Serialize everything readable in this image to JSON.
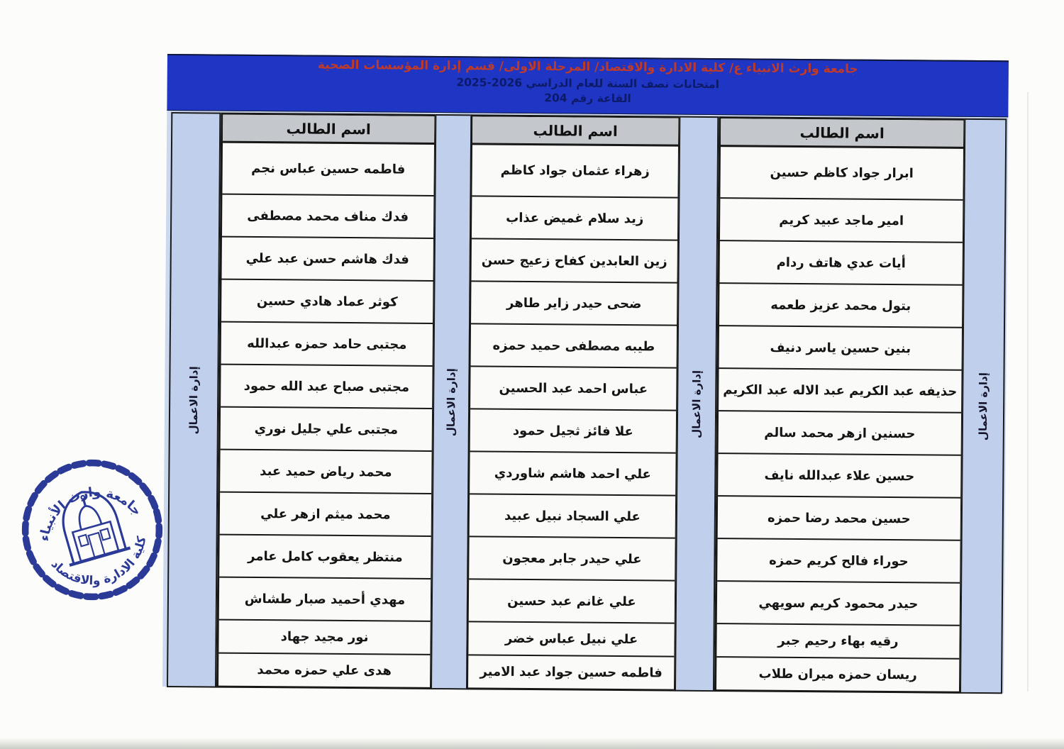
{
  "header": {
    "line1": "جامعة وارث الانبياء ع/ كلية الادارة والاقتصاد/ المرحلة الاولى/ قسم إدارة المؤسسات الصحية",
    "line2": "امتحانات نصف السنة للعام الدراسي 2026-2025",
    "line3": "القاعة رقم 204"
  },
  "column_header": "اسم الطالب",
  "vertical_label": "إدارة الاعمال",
  "groups": [
    {
      "position": "right",
      "students": [
        "ابرار جواد كاظم حسين",
        "امير ماجد عبيد كريم",
        "أيات عدي هاتف ردام",
        "بتول محمد عزيز طعمه",
        "بنين حسين ياسر دنيف",
        "حذيفه عبد الكريم عبد الاله عبد الكريم",
        "حسنين ازهر محمد سالم",
        "حسين علاء عبدالله نايف",
        "حسين محمد رضا حمزه",
        "حوراء فالح كريم حمزه",
        "حيدر محمود كريم سويهي",
        "رقيه بهاء رحيم جبر",
        "ريسان حمزه ميران طلاب"
      ]
    },
    {
      "position": "middle",
      "students": [
        "زهراء عثمان جواد كاظم",
        "زيد سلام غميض عذاب",
        "زين العابدين كفاح زعيج حسن",
        "ضحى حيدر زاير طاهر",
        "طيبه مصطفى حميد حمزه",
        "عباس احمد عبد الحسين",
        "علا فائز ثجيل حمود",
        "علي احمد هاشم شاوردي",
        "علي السجاد نبيل عبيد",
        "علي حيدر جابر معجون",
        "علي غانم عبد حسين",
        "علي نبيل عباس خضر",
        "فاطمه حسين جواد عبد الامير"
      ]
    },
    {
      "position": "left",
      "students": [
        "فاطمه حسين عباس نجم",
        "فدك مناف محمد مصطفى",
        "فدك هاشم حسن عبد علي",
        "كوثر عماد هادي حسين",
        "مجتبى حامد حمزه عبدالله",
        "مجتبى صباح عبد الله حمود",
        "مجتبى علي جليل نوري",
        "محمد رياض حميد عبد",
        "محمد ميثم ازهر علي",
        "منتظر يعقوب كامل عامر",
        "مهدي أحميد صبار طشاش",
        "نور مجيد جهاد",
        "هدى علي حمزه محمد"
      ]
    }
  ],
  "stamp": {
    "top_text": "جامعة وارث الأنبياء",
    "bottom_text": "كلية الادارة والاقتصاد"
  },
  "colors": {
    "band_blue": "#1e36c3",
    "title_red": "#bf3a28",
    "subtitle_navy": "#0d1a68",
    "sheet_blue": "#cbd8ee",
    "header_gray": "#c4c8cc",
    "stamp_blue": "#2b3a96"
  }
}
